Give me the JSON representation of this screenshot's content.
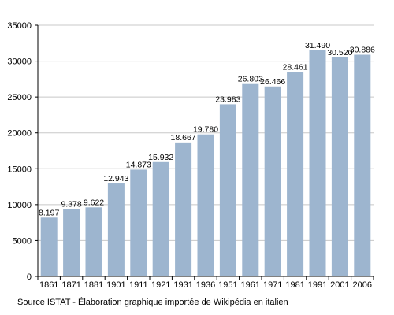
{
  "chart_data": {
    "type": "bar",
    "categories": [
      "1861",
      "1871",
      "1881",
      "1901",
      "1911",
      "1921",
      "1931",
      "1936",
      "1951",
      "1961",
      "1971",
      "1981",
      "1991",
      "2001",
      "2006"
    ],
    "values": [
      8197,
      9378,
      9622,
      12943,
      14873,
      15932,
      18667,
      19780,
      23983,
      26803,
      26466,
      28461,
      31490,
      30520,
      30886
    ],
    "value_labels": [
      "8.197",
      "9.378",
      "9.622",
      "12.943",
      "14.873",
      "15.932",
      "18.667",
      "19.780",
      "23.983",
      "26.803",
      "26.466",
      "28.461",
      "31.490",
      "30.520",
      "30.886"
    ],
    "ylim": [
      0,
      35000
    ],
    "yticks": [
      0,
      5000,
      10000,
      15000,
      20000,
      25000,
      30000,
      35000
    ],
    "grid": true,
    "bar_color": "#9db5cf",
    "grid_color": "#c8c8c8"
  },
  "footer": {
    "source": "Source ISTAT - Élaboration graphique importée de Wikipédia en italien"
  }
}
